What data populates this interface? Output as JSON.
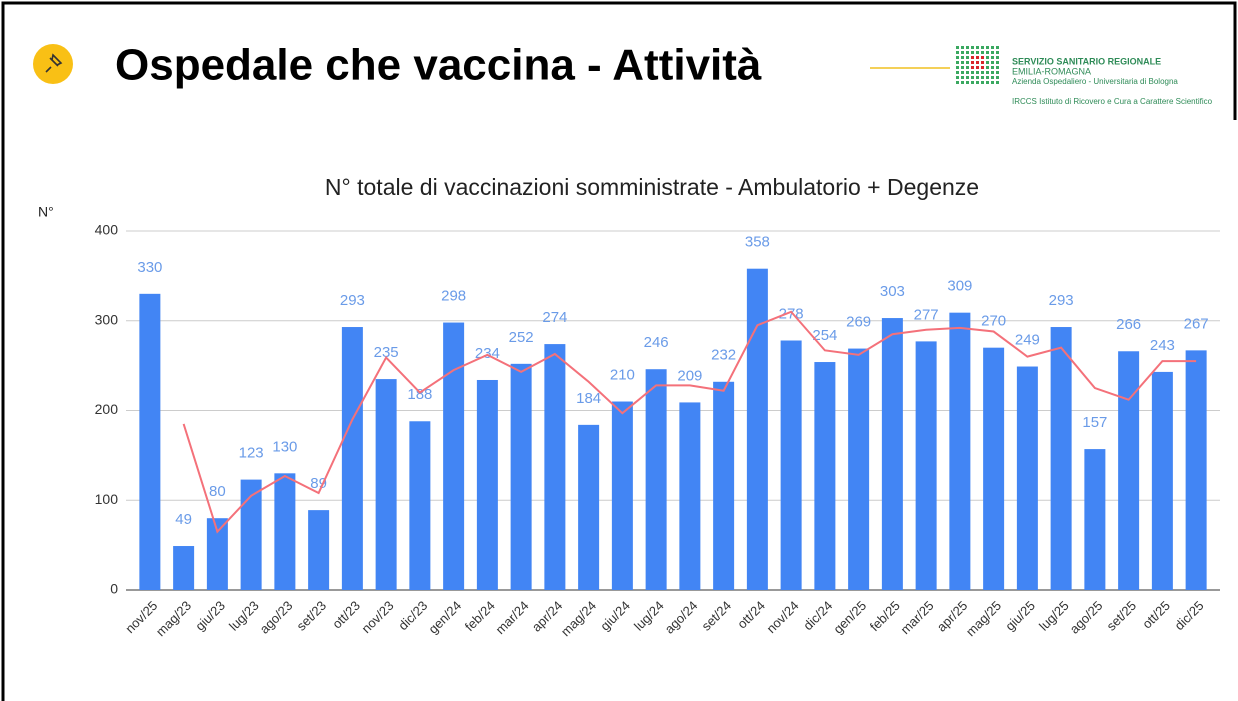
{
  "header": {
    "title": "Ospedale che vaccina - Attività"
  },
  "logo": {
    "line1": "SERVIZIO SANITARIO REGIONALE",
    "line2": "EMILIA-ROMAGNA",
    "line3": "Azienda Ospedaliero - Universitaria di Bologna",
    "line4": "IRCCS Istituto di Ricovero e Cura a Carattere Scientifico"
  },
  "chart_data": {
    "type": "bar",
    "title": "N° totale di vaccinazioni somministrate - Ambulatorio + Degenze",
    "y_label": "N°",
    "categories": [
      "nov/25",
      "mag/23",
      "giu/23",
      "lug/23",
      "ago/23",
      "set/23",
      "ott/23",
      "nov/23",
      "dic/23",
      "gen/24",
      "feb/24",
      "mar/24",
      "apr/24",
      "mag/24",
      "giu/24",
      "lug/24",
      "ago/24",
      "set/24",
      "ott/24",
      "nov/24",
      "dic/24",
      "gen/25",
      "feb/25",
      "mar/25",
      "apr/25",
      "mag/25",
      "giu/25",
      "lug/25",
      "ago/25",
      "set/25",
      "ott/25",
      "dic/25"
    ],
    "series": [
      {
        "type": "bar",
        "color": "#4285f4",
        "values": [
          330,
          49,
          80,
          123,
          130,
          89,
          293,
          235,
          188,
          298,
          234,
          252,
          274,
          184,
          210,
          246,
          209,
          232,
          358,
          278,
          254,
          269,
          303,
          277,
          309,
          270,
          249,
          293,
          157,
          266,
          243,
          267
        ]
      },
      {
        "type": "line",
        "color": "#f4717a",
        "values": [
          null,
          185,
          65,
          105,
          127,
          108,
          190,
          259,
          220,
          245,
          262,
          243,
          263,
          232,
          197,
          228,
          228,
          222,
          295,
          310,
          267,
          262,
          285,
          290,
          292,
          288,
          260,
          270,
          225,
          212,
          255,
          255
        ]
      }
    ],
    "ylim": [
      0,
      400
    ],
    "yticks": [
      0,
      100,
      200,
      300,
      400
    ],
    "grid": true
  }
}
